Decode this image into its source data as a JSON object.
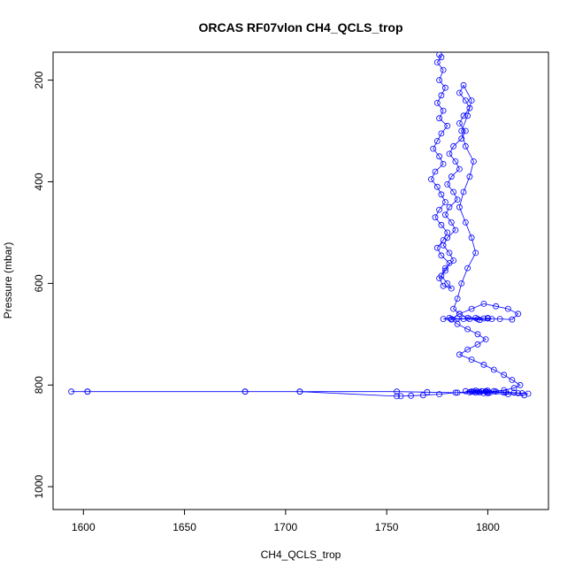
{
  "chart_data": {
    "type": "scatter",
    "title": "ORCAS RF07vlon CH4_QCLS_trop",
    "xlabel": "CH4_QCLS_trop",
    "ylabel": "Pressure (mbar)",
    "xlim": [
      1585,
      1830
    ],
    "ylim": [
      1045,
      145
    ],
    "y_reversed": true,
    "x_ticks": [
      1600,
      1650,
      1700,
      1750,
      1800
    ],
    "y_ticks": [
      200,
      400,
      600,
      800,
      1000
    ],
    "grid": false,
    "legend": "none",
    "marker": "open-circle",
    "connect_points": true,
    "series": [
      {
        "color": "#0000ff",
        "x": [
          1776,
          1777,
          1775,
          1778,
          1776,
          1779,
          1777,
          1775,
          1778,
          1776,
          1780,
          1777,
          1775,
          1773,
          1776,
          1778,
          1774,
          1772,
          1775,
          1777,
          1779,
          1776,
          1774,
          1777,
          1780,
          1778,
          1775,
          1777,
          1781,
          1779,
          1776,
          1778,
          1782,
          1780,
          1777,
          1779,
          1783,
          1781,
          1778,
          1780,
          1784,
          1782,
          1779,
          1781,
          1785,
          1783,
          1780,
          1782,
          1786,
          1784,
          1781,
          1783,
          1787,
          1789,
          1786,
          1788,
          1791,
          1789,
          1786,
          1788,
          1792,
          1790,
          1787,
          1789,
          1793,
          1791,
          1788,
          1786,
          1789,
          1792,
          1794,
          1790,
          1787,
          1785,
          1783,
          1786,
          1790,
          1795,
          1798,
          1800,
          1802,
          1796,
          1791,
          1785,
          1781,
          1778,
          1782,
          1788,
          1794,
          1800,
          1806,
          1812,
          1815,
          1810,
          1804,
          1798,
          1792,
          1786,
          1782,
          1785,
          1790,
          1795,
          1799,
          1795,
          1790,
          1786,
          1792,
          1798,
          1803,
          1808,
          1812,
          1816,
          1813,
          1808,
          1803,
          1799,
          1796,
          1793,
          1797,
          1800,
          1795,
          1791,
          1794,
          1798,
          1801,
          1796,
          1792,
          1789,
          1794,
          1799,
          1804,
          1809,
          1813,
          1817,
          1820,
          1815,
          1808,
          1800,
          1792,
          1784,
          1776,
          1768,
          1762,
          1757,
          1755,
          1707,
          1680,
          1602,
          1594,
          1602,
          1680,
          1707,
          1755,
          1770,
          1785,
          1800,
          1810,
          1818
        ],
        "y": [
          150,
          155,
          165,
          180,
          200,
          215,
          230,
          245,
          260,
          275,
          290,
          305,
          320,
          335,
          350,
          365,
          380,
          395,
          410,
          425,
          440,
          455,
          470,
          485,
          500,
          515,
          530,
          545,
          560,
          575,
          590,
          605,
          610,
          600,
          585,
          570,
          555,
          540,
          525,
          510,
          495,
          480,
          465,
          450,
          435,
          420,
          405,
          390,
          375,
          360,
          345,
          330,
          315,
          300,
          285,
          270,
          255,
          240,
          225,
          210,
          240,
          270,
          300,
          330,
          360,
          390,
          420,
          450,
          480,
          510,
          540,
          570,
          600,
          630,
          650,
          660,
          668,
          670,
          669,
          668,
          670,
          672,
          670,
          669,
          668,
          670,
          671,
          670,
          668,
          669,
          670,
          671,
          660,
          650,
          645,
          640,
          650,
          660,
          670,
          680,
          690,
          700,
          710,
          720,
          730,
          740,
          750,
          760,
          770,
          780,
          790,
          800,
          806,
          810,
          812,
          813,
          814,
          813,
          812,
          811,
          813,
          814,
          815,
          816,
          815,
          814,
          813,
          812,
          811,
          812,
          813,
          814,
          815,
          816,
          817,
          816,
          815,
          814,
          813,
          815,
          818,
          820,
          821,
          822,
          822,
          813,
          813,
          813,
          813,
          813,
          813,
          813,
          813,
          814,
          815,
          816,
          818,
          820
        ]
      }
    ]
  }
}
